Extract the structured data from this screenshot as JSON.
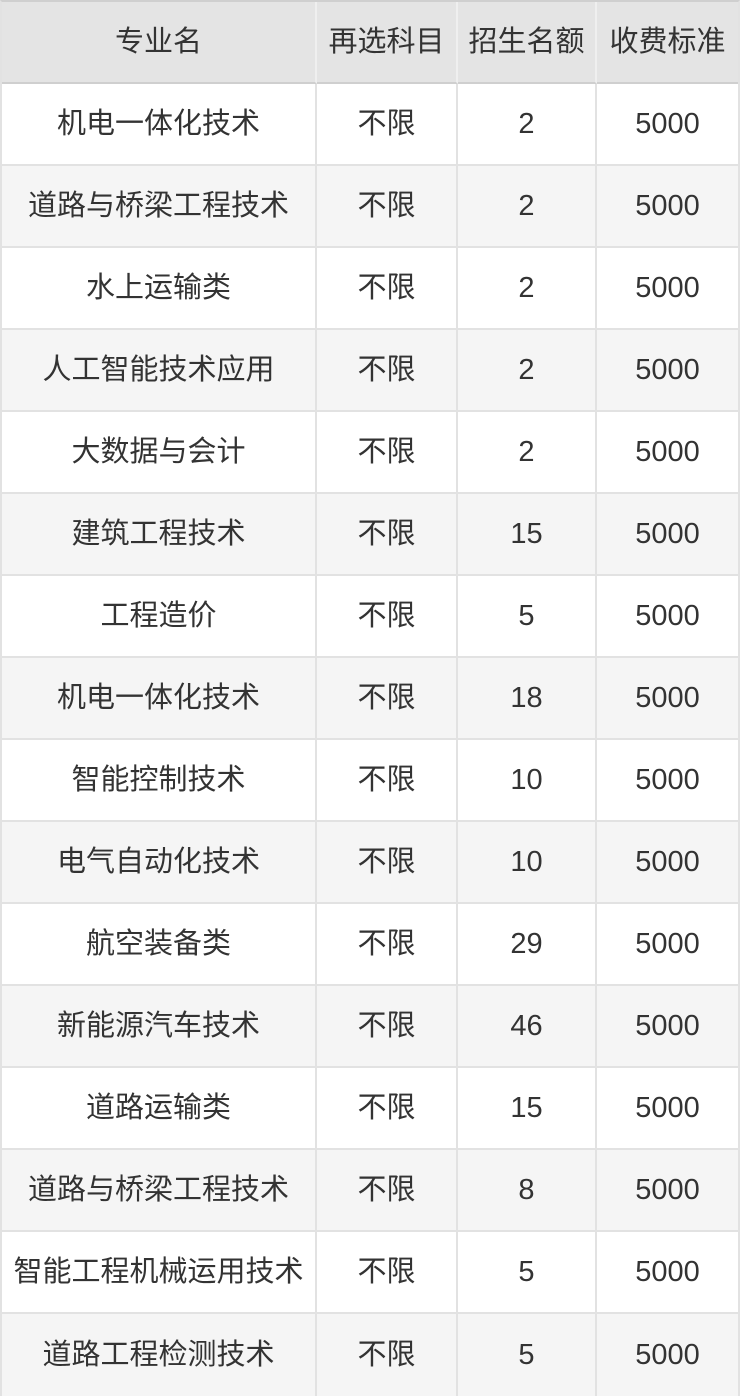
{
  "table": {
    "columns": [
      {
        "key": "major",
        "label": "专业名"
      },
      {
        "key": "subjects",
        "label": "再选科目"
      },
      {
        "key": "quota",
        "label": "招生名额"
      },
      {
        "key": "fee",
        "label": "收费标准"
      }
    ],
    "rows": [
      {
        "major": "机电一体化技术",
        "subjects": "不限",
        "quota": "2",
        "fee": "5000"
      },
      {
        "major": "道路与桥梁工程技术",
        "subjects": "不限",
        "quota": "2",
        "fee": "5000"
      },
      {
        "major": "水上运输类",
        "subjects": "不限",
        "quota": "2",
        "fee": "5000"
      },
      {
        "major": "人工智能技术应用",
        "subjects": "不限",
        "quota": "2",
        "fee": "5000"
      },
      {
        "major": "大数据与会计",
        "subjects": "不限",
        "quota": "2",
        "fee": "5000"
      },
      {
        "major": "建筑工程技术",
        "subjects": "不限",
        "quota": "15",
        "fee": "5000"
      },
      {
        "major": "工程造价",
        "subjects": "不限",
        "quota": "5",
        "fee": "5000"
      },
      {
        "major": "机电一体化技术",
        "subjects": "不限",
        "quota": "18",
        "fee": "5000"
      },
      {
        "major": "智能控制技术",
        "subjects": "不限",
        "quota": "10",
        "fee": "5000"
      },
      {
        "major": "电气自动化技术",
        "subjects": "不限",
        "quota": "10",
        "fee": "5000"
      },
      {
        "major": "航空装备类",
        "subjects": "不限",
        "quota": "29",
        "fee": "5000"
      },
      {
        "major": "新能源汽车技术",
        "subjects": "不限",
        "quota": "46",
        "fee": "5000"
      },
      {
        "major": "道路运输类",
        "subjects": "不限",
        "quota": "15",
        "fee": "5000"
      },
      {
        "major": "道路与桥梁工程技术",
        "subjects": "不限",
        "quota": "8",
        "fee": "5000"
      },
      {
        "major": "智能工程机械运用技术",
        "subjects": "不限",
        "quota": "5",
        "fee": "5000"
      },
      {
        "major": "道路工程检测技术",
        "subjects": "不限",
        "quota": "5",
        "fee": "5000"
      }
    ]
  },
  "colors": {
    "header_bg": "#e4e4e4",
    "header_divider": "#efefef",
    "row_bg": "#ffffff",
    "row_alt_bg": "#f5f5f5",
    "border": "#e2e2e2",
    "border_strong": "#cfcfcf",
    "text": "#333333"
  }
}
